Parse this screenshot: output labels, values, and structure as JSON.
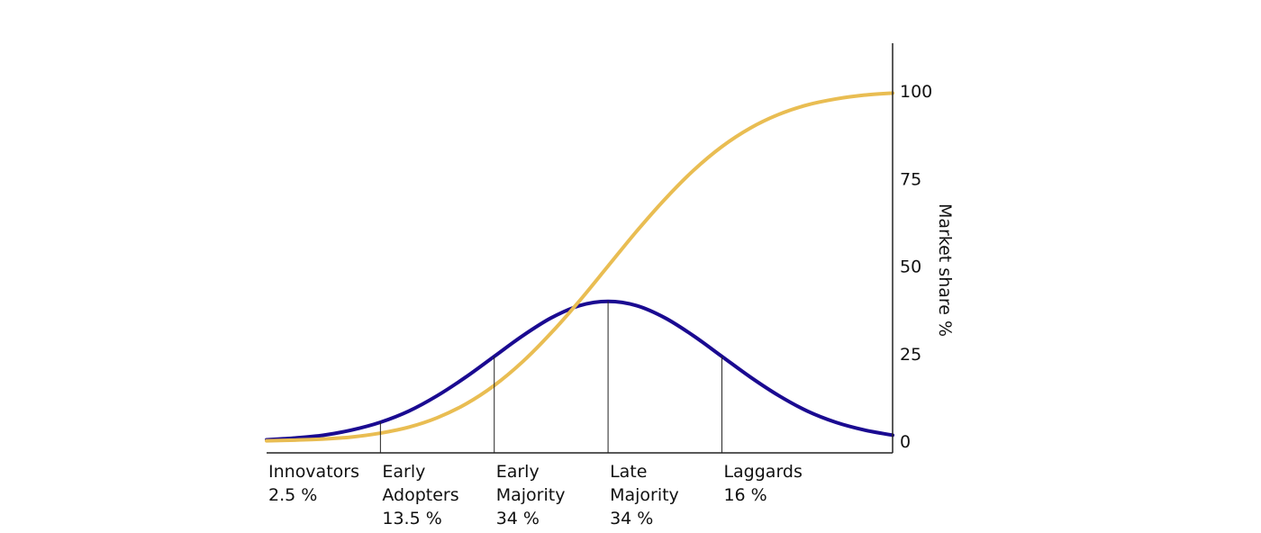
{
  "chart_data": {
    "type": "line",
    "title": "",
    "xlabel": "",
    "ylabel": "Market share %",
    "ylim": [
      0,
      100
    ],
    "y_ticks": [
      0,
      25,
      50,
      75,
      100
    ],
    "y_axis_side": "right",
    "grid": false,
    "legend": "none",
    "x_range": [
      -3,
      2.5
    ],
    "segments": [
      {
        "name": "Innovators",
        "share": "2.5 %",
        "start": -3,
        "end": -2
      },
      {
        "name": "Early Adopters",
        "share": "13.5 %",
        "start": -2,
        "end": -1
      },
      {
        "name": "Early Majority",
        "share": "34 %",
        "start": -1,
        "end": 0
      },
      {
        "name": "Late Majority",
        "share": "34 %",
        "start": 0,
        "end": 1
      },
      {
        "name": "Laggards",
        "share": "16 %",
        "start": 1,
        "end": 2.5
      }
    ],
    "series": [
      {
        "color": "#1a0a91",
        "x": [
          -3.0,
          -2.75,
          -2.5,
          -2.25,
          -2.0,
          -1.75,
          -1.5,
          -1.25,
          -1.0,
          -0.75,
          -0.5,
          -0.25,
          0.0,
          0.25,
          0.5,
          0.75,
          1.0,
          1.25,
          1.5,
          1.75,
          2.0,
          2.25,
          2.5
        ],
        "y": [
          0.4,
          0.9,
          1.7,
          3.2,
          5.4,
          8.6,
          13.0,
          18.3,
          24.2,
          30.1,
          35.2,
          38.7,
          39.9,
          38.7,
          35.2,
          30.1,
          24.2,
          18.3,
          13.0,
          8.6,
          5.4,
          3.2,
          1.7
        ]
      },
      {
        "color": "#e9bd52",
        "x": [
          -3.0,
          -2.75,
          -2.5,
          -2.25,
          -2.0,
          -1.75,
          -1.5,
          -1.25,
          -1.0,
          -0.75,
          -0.5,
          -0.25,
          0.0,
          0.25,
          0.5,
          0.75,
          1.0,
          1.25,
          1.5,
          1.75,
          2.0,
          2.25,
          2.5
        ],
        "y": [
          0.1,
          0.3,
          0.6,
          1.2,
          2.3,
          4.0,
          6.7,
          10.6,
          15.9,
          22.7,
          30.9,
          40.1,
          50.0,
          59.9,
          69.1,
          77.3,
          84.1,
          89.4,
          93.3,
          96.0,
          97.7,
          98.8,
          99.4
        ]
      }
    ]
  }
}
